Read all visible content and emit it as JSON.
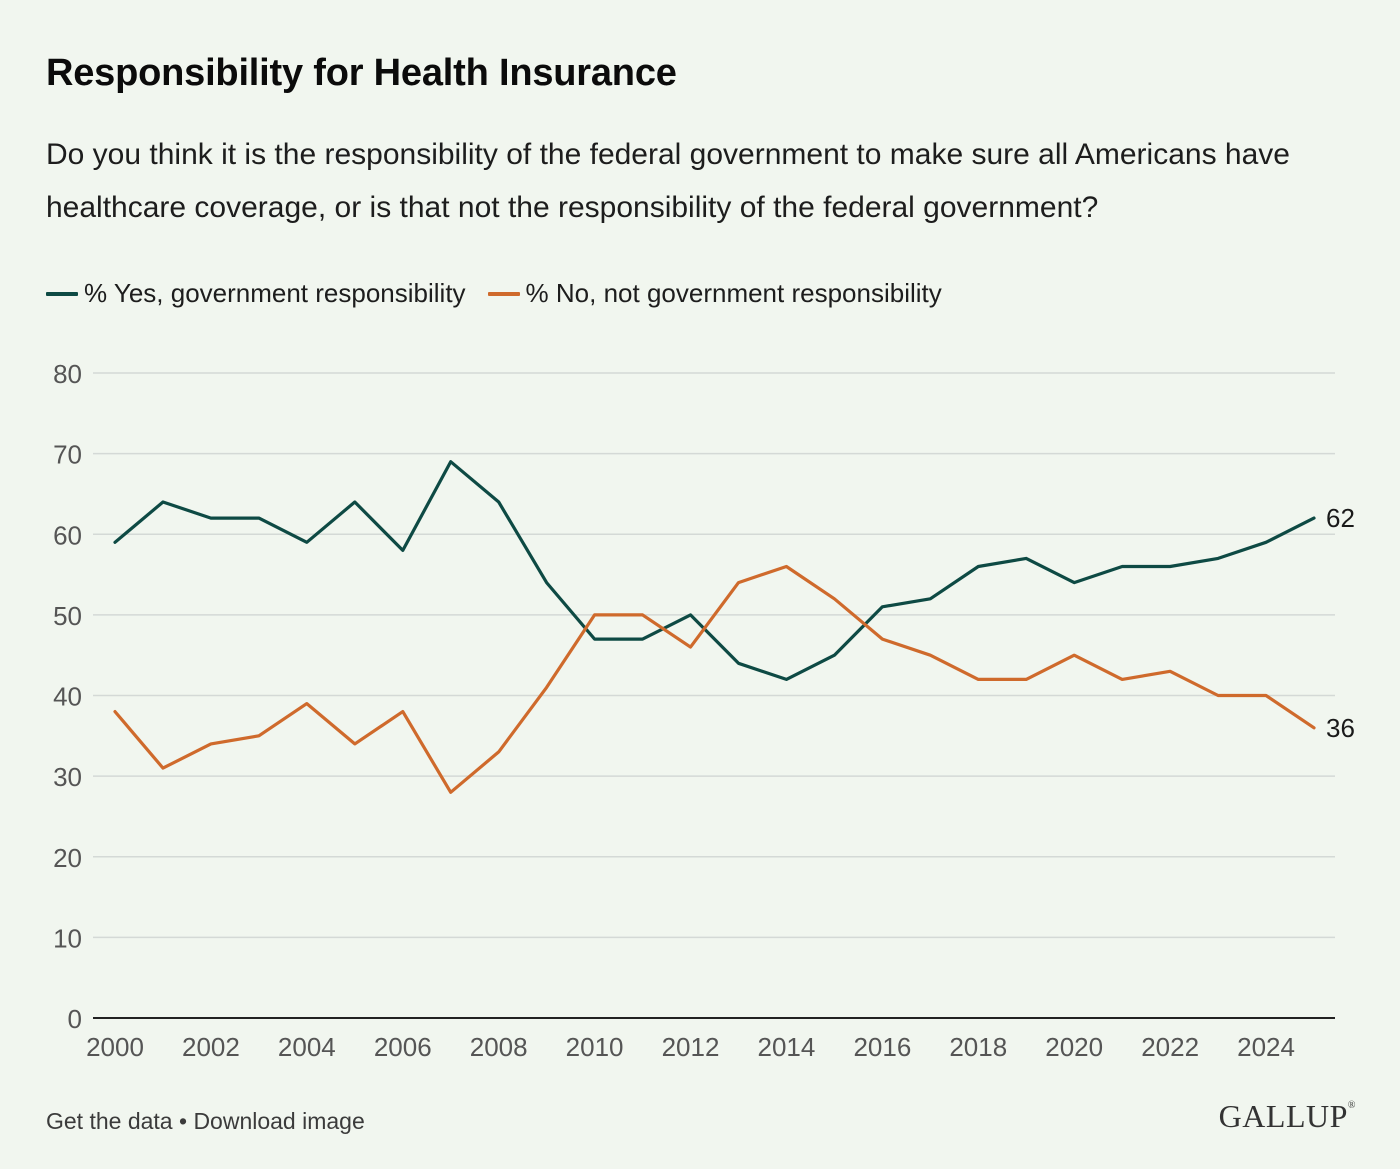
{
  "title": "Responsibility for Health Insurance",
  "subtitle": "Do you think it is the responsibility of the federal government to make sure all Americans have healthcare coverage, or is that not the responsibility of the federal government?",
  "footer": {
    "get_data": "Get the data",
    "separator": " • ",
    "download": "Download image"
  },
  "logo": "GALLUP",
  "colors": {
    "yes": "#0e4a44",
    "no": "#cf6a2c",
    "grid": "#d4d9d6",
    "axis": "#222222",
    "tick_text": "#555555"
  },
  "chart_data": {
    "type": "line",
    "title": "Responsibility for Health Insurance",
    "xlabel": "",
    "ylabel": "",
    "xlim": [
      2000,
      2025
    ],
    "ylim": [
      0,
      80
    ],
    "y_ticks": [
      0,
      10,
      20,
      30,
      40,
      50,
      60,
      70,
      80
    ],
    "x_ticks": [
      2000,
      2002,
      2004,
      2006,
      2008,
      2010,
      2012,
      2014,
      2016,
      2018,
      2020,
      2022,
      2024
    ],
    "grid": true,
    "legend_position": "top-left",
    "x": [
      2000,
      2001,
      2002,
      2003,
      2004,
      2005,
      2006,
      2007,
      2008,
      2009,
      2010,
      2011,
      2012,
      2013,
      2014,
      2015,
      2016,
      2017,
      2018,
      2019,
      2020,
      2021,
      2022,
      2023,
      2024,
      2025
    ],
    "series": [
      {
        "name": "% Yes, government responsibility",
        "color": "#0e4a44",
        "values": [
          59,
          64,
          62,
          62,
          59,
          64,
          58,
          69,
          64,
          54,
          47,
          47,
          50,
          44,
          42,
          45,
          51,
          52,
          56,
          57,
          54,
          56,
          56,
          57,
          59,
          62
        ],
        "end_label": "62"
      },
      {
        "name": "% No, not government responsibility",
        "color": "#cf6a2c",
        "values": [
          38,
          31,
          34,
          35,
          39,
          34,
          38,
          28,
          33,
          41,
          50,
          50,
          46,
          54,
          56,
          52,
          47,
          45,
          42,
          42,
          45,
          42,
          43,
          40,
          40,
          36
        ],
        "end_label": "36"
      }
    ]
  }
}
